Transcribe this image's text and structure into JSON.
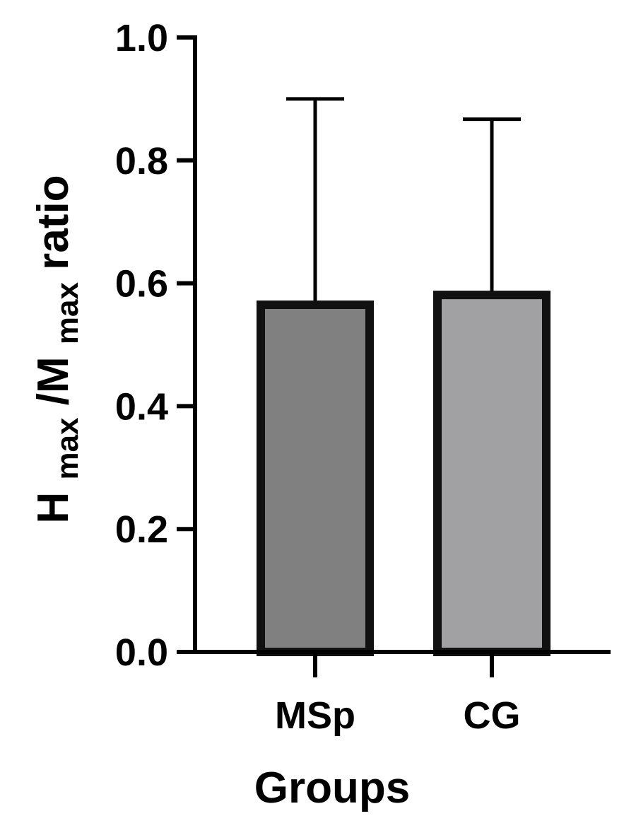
{
  "chart_data": {
    "type": "bar",
    "title": "",
    "categories": [
      "MSp",
      "CG"
    ],
    "values": [
      0.565,
      0.581
    ],
    "error_upper": [
      0.9,
      0.867
    ],
    "ylim": [
      0.0,
      1.0
    ],
    "yticks": [
      "0.0",
      "0.2",
      "0.4",
      "0.6",
      "0.8",
      "1.0"
    ],
    "xlabel": "Groups",
    "ylabel": {
      "part1": "H",
      "part1_sub": "max",
      "part2": "/M",
      "part2_sub": "max",
      "part3": " ratio"
    },
    "bar_colors": [
      "#808080",
      "#a1a1a4"
    ],
    "bar_edge_color": "#111111",
    "grid": false,
    "legend": "none"
  }
}
